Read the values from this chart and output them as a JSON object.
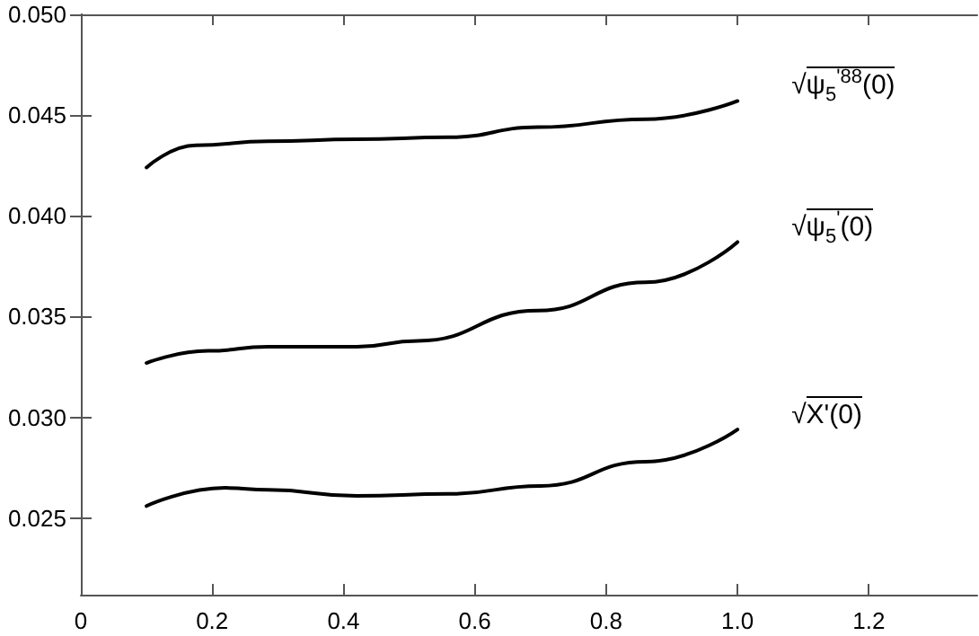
{
  "chart_data": {
    "type": "line",
    "xlim": [
      0,
      1.365
    ],
    "ylim": [
      0.0212,
      0.05
    ],
    "xticks": [
      0,
      0.2,
      0.4,
      0.6,
      0.8,
      {
        "value": 1,
        "label": "1.0"
      },
      1.2
    ],
    "yticks": [
      {
        "value": 0.025,
        "label": "0.025"
      },
      {
        "value": 0.03,
        "label": "0.030"
      },
      {
        "value": 0.035,
        "label": "0.035"
      },
      {
        "value": 0.04,
        "label": "0.040"
      },
      {
        "value": 0.045,
        "label": "0.045"
      },
      {
        "value": 0.05,
        "label": "0.050"
      }
    ],
    "grid": false,
    "legend": "right",
    "marker": "none",
    "line_style": "solid",
    "series": [
      {
        "name": "√ψ$_{5}$$^{'88}$(0)",
        "color": "#000000",
        "x": [
          0.1,
          0.175,
          0.285,
          0.42,
          0.56,
          0.696,
          0.86,
          1.0
        ],
        "values": [
          0.0424,
          0.0435,
          0.0437,
          0.0438,
          0.0439,
          0.0444,
          0.0448,
          0.0457
        ]
      },
      {
        "name": "√ψ$_{5}$$^{'}$(0)",
        "color": "#000000",
        "x": [
          0.1,
          0.194,
          0.285,
          0.42,
          0.513,
          0.696,
          0.86,
          1.0
        ],
        "values": [
          0.0327,
          0.0333,
          0.0335,
          0.0335,
          0.0338,
          0.0353,
          0.0367,
          0.0387
        ]
      },
      {
        "name": "√X'(0)",
        "color": "#000000",
        "x": [
          0.1,
          0.22,
          0.285,
          0.42,
          0.56,
          0.7,
          0.86,
          1.0
        ],
        "values": [
          0.0256,
          0.0265,
          0.0264,
          0.0261,
          0.0262,
          0.0266,
          0.0278,
          0.0294
        ]
      }
    ]
  }
}
